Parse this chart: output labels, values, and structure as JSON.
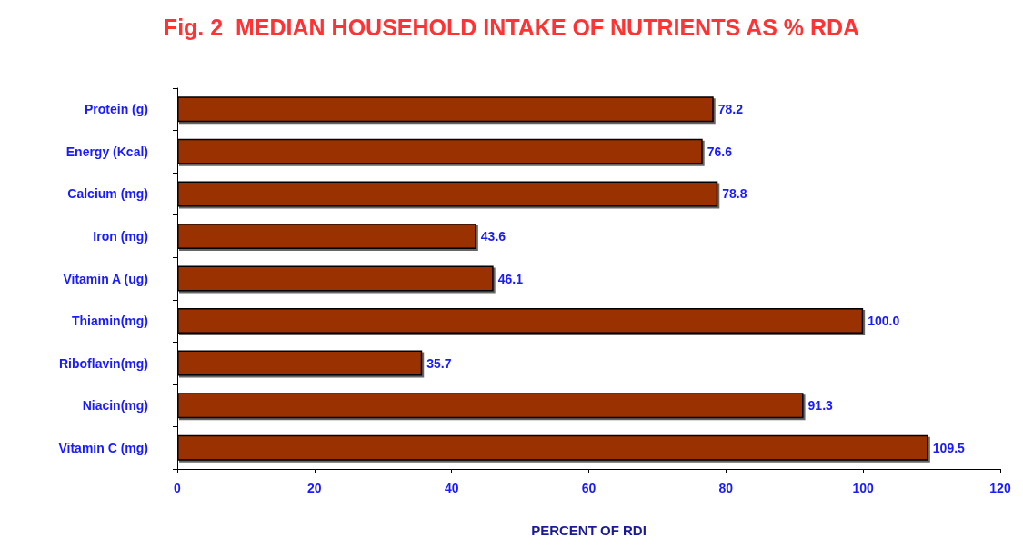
{
  "chart_data": {
    "type": "bar",
    "orientation": "horizontal",
    "title": "Fig. 2  MEDIAN HOUSEHOLD INTAKE OF NUTRIENTS AS % RDA",
    "xlabel": "PERCENT OF RDI",
    "categories": [
      "Protein (g)",
      "Energy (Kcal)",
      "Calcium (mg)",
      "Iron (mg)",
      "Vitamin A (ug)",
      "Thiamin(mg)",
      "Riboflavin(mg)",
      "Niacin(mg)",
      "Vitamin C (mg)"
    ],
    "values": [
      78.2,
      76.6,
      78.8,
      43.6,
      46.1,
      100.0,
      35.7,
      91.3,
      109.5
    ],
    "value_labels": [
      "78.2",
      "76.6",
      "78.8",
      "43.6",
      "46.1",
      "100.0",
      "35.7",
      "91.3",
      "109.5"
    ],
    "color": "#993300",
    "xlim": [
      0,
      120
    ],
    "xticks": [
      0,
      20,
      40,
      60,
      80,
      100,
      120
    ],
    "grid": false
  }
}
